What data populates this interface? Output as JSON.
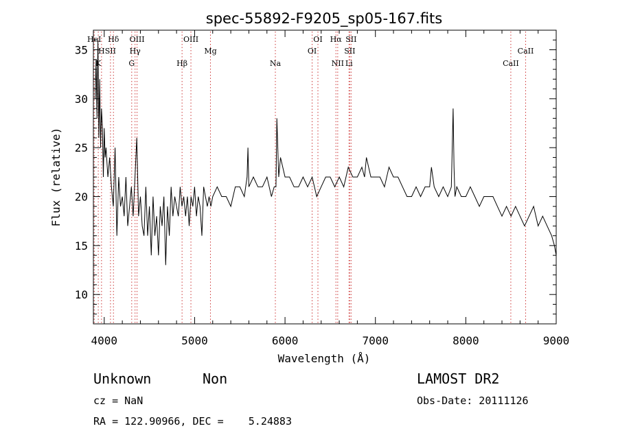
{
  "chart_data": {
    "type": "line",
    "title": "spec-55892-F9205_sp05-167.fits",
    "xlabel": "Wavelength (Å)",
    "ylabel": "Flux (relative)",
    "xlim": [
      3880,
      9000
    ],
    "ylim": [
      7,
      37
    ],
    "xticks": [
      4000,
      5000,
      6000,
      7000,
      8000,
      9000
    ],
    "yticks": [
      10,
      15,
      20,
      25,
      30,
      35
    ],
    "grid": false,
    "series": [
      {
        "color": "#000000",
        "x": [
          3900,
          3910,
          3920,
          3930,
          3940,
          3950,
          3960,
          3970,
          3980,
          3990,
          4000,
          4010,
          4020,
          4040,
          4060,
          4080,
          4100,
          4120,
          4140,
          4160,
          4180,
          4200,
          4220,
          4240,
          4260,
          4280,
          4300,
          4320,
          4340,
          4360,
          4380,
          4400,
          4420,
          4440,
          4460,
          4480,
          4500,
          4520,
          4540,
          4560,
          4580,
          4600,
          4620,
          4640,
          4660,
          4680,
          4700,
          4720,
          4740,
          4760,
          4780,
          4800,
          4820,
          4840,
          4860,
          4880,
          4900,
          4920,
          4940,
          4960,
          4980,
          5000,
          5020,
          5040,
          5060,
          5080,
          5100,
          5120,
          5140,
          5160,
          5180,
          5200,
          5250,
          5300,
          5350,
          5400,
          5450,
          5500,
          5550,
          5580,
          5590,
          5600,
          5650,
          5700,
          5750,
          5800,
          5850,
          5880,
          5900,
          5910,
          5930,
          5950,
          6000,
          6050,
          6100,
          6150,
          6200,
          6250,
          6300,
          6350,
          6400,
          6450,
          6500,
          6550,
          6600,
          6650,
          6700,
          6750,
          6800,
          6850,
          6880,
          6900,
          6950,
          7000,
          7050,
          7100,
          7150,
          7200,
          7250,
          7300,
          7350,
          7400,
          7450,
          7500,
          7550,
          7600,
          7620,
          7650,
          7700,
          7750,
          7800,
          7840,
          7860,
          7870,
          7880,
          7900,
          7950,
          8000,
          8050,
          8100,
          8150,
          8200,
          8250,
          8300,
          8350,
          8400,
          8450,
          8500,
          8550,
          8600,
          8650,
          8700,
          8750,
          8800,
          8850,
          8900,
          8950,
          8980,
          9000
        ],
        "values": [
          30,
          34,
          28,
          36,
          26,
          32,
          25,
          29,
          27,
          22,
          27,
          24,
          25,
          22,
          24,
          21,
          19,
          25,
          16,
          22,
          19,
          20,
          18,
          22,
          17,
          19,
          21,
          18,
          22,
          26,
          18,
          20,
          17,
          16,
          21,
          16,
          19,
          14,
          20,
          16,
          18,
          14,
          19,
          17,
          20,
          13,
          19,
          16,
          21,
          18,
          20,
          19,
          18,
          21,
          19,
          20,
          18,
          20,
          17,
          20,
          19,
          21,
          18,
          20,
          19,
          16,
          21,
          20,
          19,
          20,
          19,
          20,
          21,
          20,
          20,
          19,
          21,
          21,
          20,
          22,
          25,
          21,
          22,
          21,
          21,
          22,
          20,
          21,
          21,
          28,
          22,
          24,
          22,
          22,
          21,
          21,
          22,
          21,
          22,
          20,
          21,
          22,
          22,
          21,
          22,
          21,
          23,
          22,
          22,
          23,
          22,
          24,
          22,
          22,
          22,
          21,
          23,
          22,
          22,
          21,
          20,
          20,
          21,
          20,
          21,
          21,
          23,
          21,
          20,
          21,
          20,
          21,
          29,
          23,
          20,
          21,
          20,
          20,
          21,
          20,
          19,
          20,
          20,
          20,
          19,
          18,
          19,
          18,
          19,
          18,
          17,
          18,
          19,
          17,
          18,
          17,
          16,
          15,
          14
        ]
      }
    ],
    "line_markers": [
      {
        "label": "HeI",
        "x": 3889
      },
      {
        "label": "H",
        "x": 3970
      },
      {
        "label": "K",
        "x": 3934
      },
      {
        "label": "Hδ",
        "x": 4102
      },
      {
        "label": "SII",
        "x": 4069
      },
      {
        "label": "G",
        "x": 4304
      },
      {
        "label": "OIII",
        "x": 4363
      },
      {
        "label": "Hγ",
        "x": 4341
      },
      {
        "label": "Hβ",
        "x": 4861
      },
      {
        "label": "OIII",
        "x": 4959
      },
      {
        "label": "Mg",
        "x": 5175
      },
      {
        "label": "Na",
        "x": 5893
      },
      {
        "label": "OI",
        "x": 6364
      },
      {
        "label": "OI",
        "x": 6300
      },
      {
        "label": "NII",
        "x": 6583
      },
      {
        "label": "Hα",
        "x": 6563
      },
      {
        "label": "SII",
        "x": 6716
      },
      {
        "label": "Li",
        "x": 6708
      },
      {
        "label": "SII",
        "x": 6731
      },
      {
        "label": "CaII",
        "x": 8662
      },
      {
        "label": "CaII",
        "x": 8498
      }
    ]
  },
  "info": {
    "class": "Unknown",
    "subclass": "Non",
    "cz": "cz = NaN",
    "coords": "RA = 122.90966, DEC =    5.24883",
    "survey": "LAMOST DR2",
    "obs_date": "Obs-Date: 20111126"
  }
}
